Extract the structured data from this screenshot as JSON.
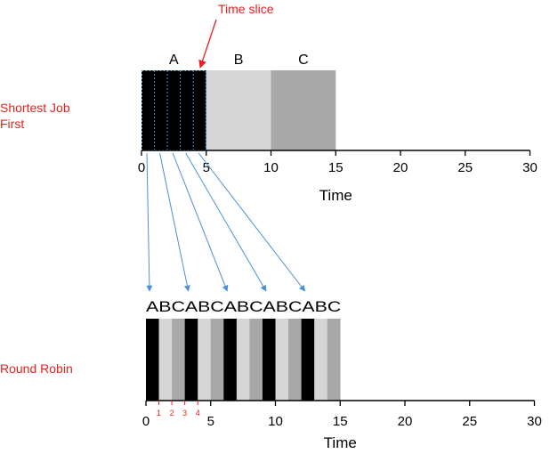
{
  "annotation": {
    "label": "Time slice",
    "color": "#e8201f"
  },
  "sjf": {
    "label_lines": [
      "Shortest Job",
      "First"
    ],
    "jobs": [
      {
        "name": "A",
        "start": 0,
        "end": 5,
        "color": "#000000"
      },
      {
        "name": "B",
        "start": 5,
        "end": 10,
        "color": "#d6d6d6"
      },
      {
        "name": "C",
        "start": 10,
        "end": 15,
        "color": "#a8a8a8"
      }
    ],
    "slice_divisions": [
      1,
      2,
      3,
      4
    ],
    "axis": {
      "min": 0,
      "max": 30,
      "ticks": [
        0,
        5,
        10,
        15,
        20,
        25,
        30
      ],
      "label": "Time"
    }
  },
  "rr": {
    "label": "Round Robin",
    "sequence_text": "ABCABCABCABCABC",
    "slices": [
      "A",
      "B",
      "C",
      "A",
      "B",
      "C",
      "A",
      "B",
      "C",
      "A",
      "B",
      "C",
      "A",
      "B",
      "C"
    ],
    "slice_colors": {
      "A": "#000000",
      "B": "#d6d6d6",
      "C": "#a8a8a8"
    },
    "minor_ticks": [
      "1",
      "2",
      "3",
      "4"
    ],
    "axis": {
      "min": 0,
      "max": 30,
      "ticks": [
        0,
        5,
        10,
        15,
        20,
        25,
        30
      ],
      "label": "Time"
    }
  },
  "colors": {
    "label_red": "#e8201f",
    "arrow_blue": "#4a90d9",
    "axis": "#000000"
  }
}
